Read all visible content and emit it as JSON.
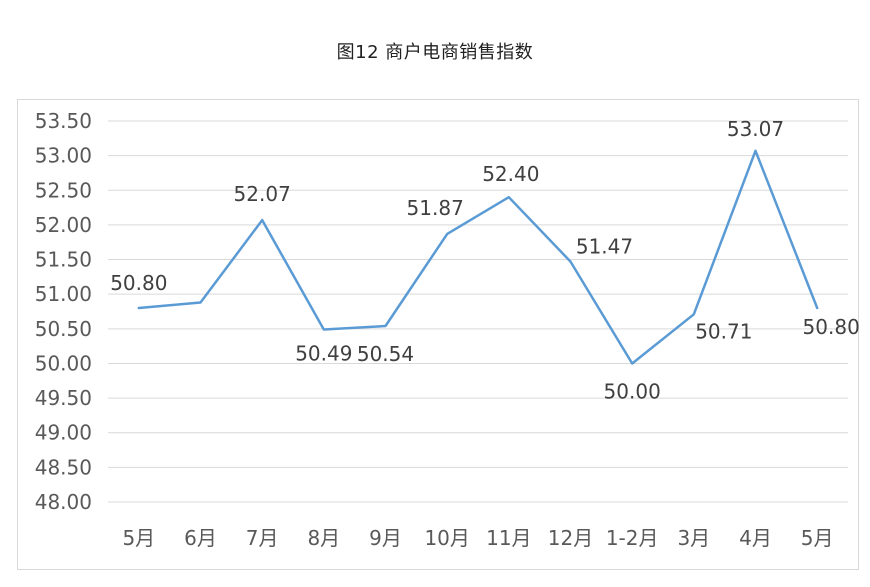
{
  "chart_data": {
    "type": "line",
    "title": "图12 商户电商销售指数",
    "categories": [
      "5月",
      "6月",
      "7月",
      "8月",
      "9月",
      "10月",
      "11月",
      "12月",
      "1-2月",
      "3月",
      "4月",
      "5月"
    ],
    "series": [
      {
        "values": [
          50.8,
          50.88,
          52.07,
          50.49,
          50.54,
          51.87,
          52.4,
          51.47,
          50.0,
          50.71,
          53.07,
          50.8
        ],
        "data_labels": [
          "50.80",
          null,
          "52.07",
          "50.49",
          "50.54",
          "51.87",
          "52.40",
          "51.47",
          "50.00",
          "50.71",
          "53.07",
          "50.80"
        ],
        "color": "#5b9bd5"
      }
    ],
    "ylim": [
      48.0,
      53.5
    ],
    "yticks": [
      "48.00",
      "48.50",
      "49.00",
      "49.50",
      "50.00",
      "50.50",
      "51.00",
      "51.50",
      "52.00",
      "52.50",
      "53.00",
      "53.50"
    ],
    "grid": true,
    "gridColor": "#d9d9d9",
    "legend": "none"
  }
}
